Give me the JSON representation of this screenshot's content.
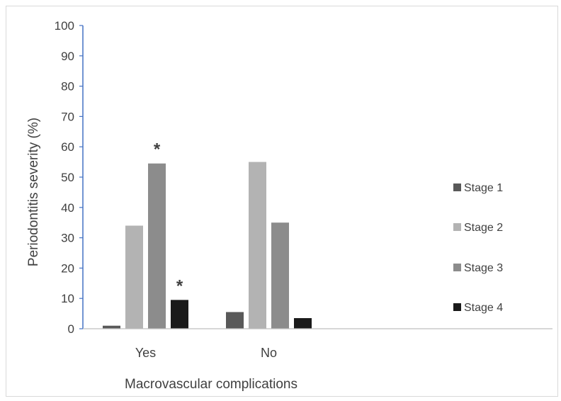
{
  "chart_data": {
    "type": "bar",
    "title": "",
    "xlabel": "Macrovascular complications",
    "ylabel": "Periodontitis severity (%)",
    "ylim": [
      0,
      100
    ],
    "yticks": [
      "0",
      "10",
      "20",
      "30",
      "40",
      "50",
      "60",
      "70",
      "80",
      "90",
      "100"
    ],
    "categories": [
      "Yes",
      "No"
    ],
    "series": [
      {
        "name": "Stage 1",
        "values": [
          1,
          5.5
        ],
        "color": "#595959"
      },
      {
        "name": "Stage 2",
        "values": [
          34,
          55
        ],
        "color": "#b3b3b3"
      },
      {
        "name": "Stage 3",
        "values": [
          54.5,
          35
        ],
        "color": "#8c8c8c"
      },
      {
        "name": "Stage 4",
        "values": [
          9.5,
          3.5
        ],
        "color": "#1a1a1a"
      }
    ],
    "annotations": [
      {
        "category": 0,
        "series": 2,
        "text": "*"
      },
      {
        "category": 0,
        "series": 3,
        "text": "*"
      }
    ],
    "grid": false,
    "legend_position": "right",
    "axis_color": "#4472c4"
  }
}
